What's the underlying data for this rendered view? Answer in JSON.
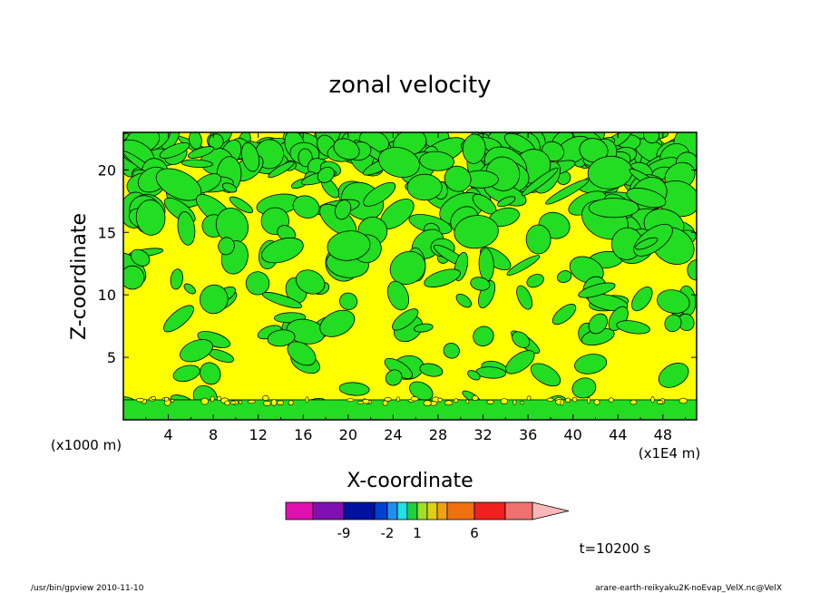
{
  "chart_data": {
    "type": "heatmap",
    "title": "zonal velocity",
    "xlabel": "X-coordinate",
    "ylabel": "Z-coordinate",
    "x_unit": "(x1E4 m)",
    "y_unit": "(x1000 m)",
    "xlim": [
      0,
      51
    ],
    "ylim": [
      0,
      23
    ],
    "x_ticks": [
      "4",
      "8",
      "12",
      "16",
      "20",
      "24",
      "28",
      "32",
      "36",
      "40",
      "44",
      "48"
    ],
    "y_ticks": [
      "5",
      "10",
      "15",
      "20"
    ],
    "colorbar": {
      "colors": [
        "#e010b0",
        "#8010b0",
        "#0010a0",
        "#0040d0",
        "#2090f0",
        "#20e0e0",
        "#20d040",
        "#a0e020",
        "#e0d010",
        "#f0a010",
        "#f07010",
        "#f02020",
        "#f07070",
        "#f8b8b8"
      ],
      "tick_labels": [
        "-9",
        "-2",
        "1",
        "6"
      ]
    },
    "field_colors": {
      "positive": "#ffff00",
      "negative": "#22dd22",
      "contour": "#000000"
    },
    "time_label": "t=10200 s"
  },
  "footer": {
    "left": "/usr/bin/gpview   2010-11-10",
    "right": "arare-earth-reikyaku2K-noEvap_VelX.nc@VelX"
  }
}
